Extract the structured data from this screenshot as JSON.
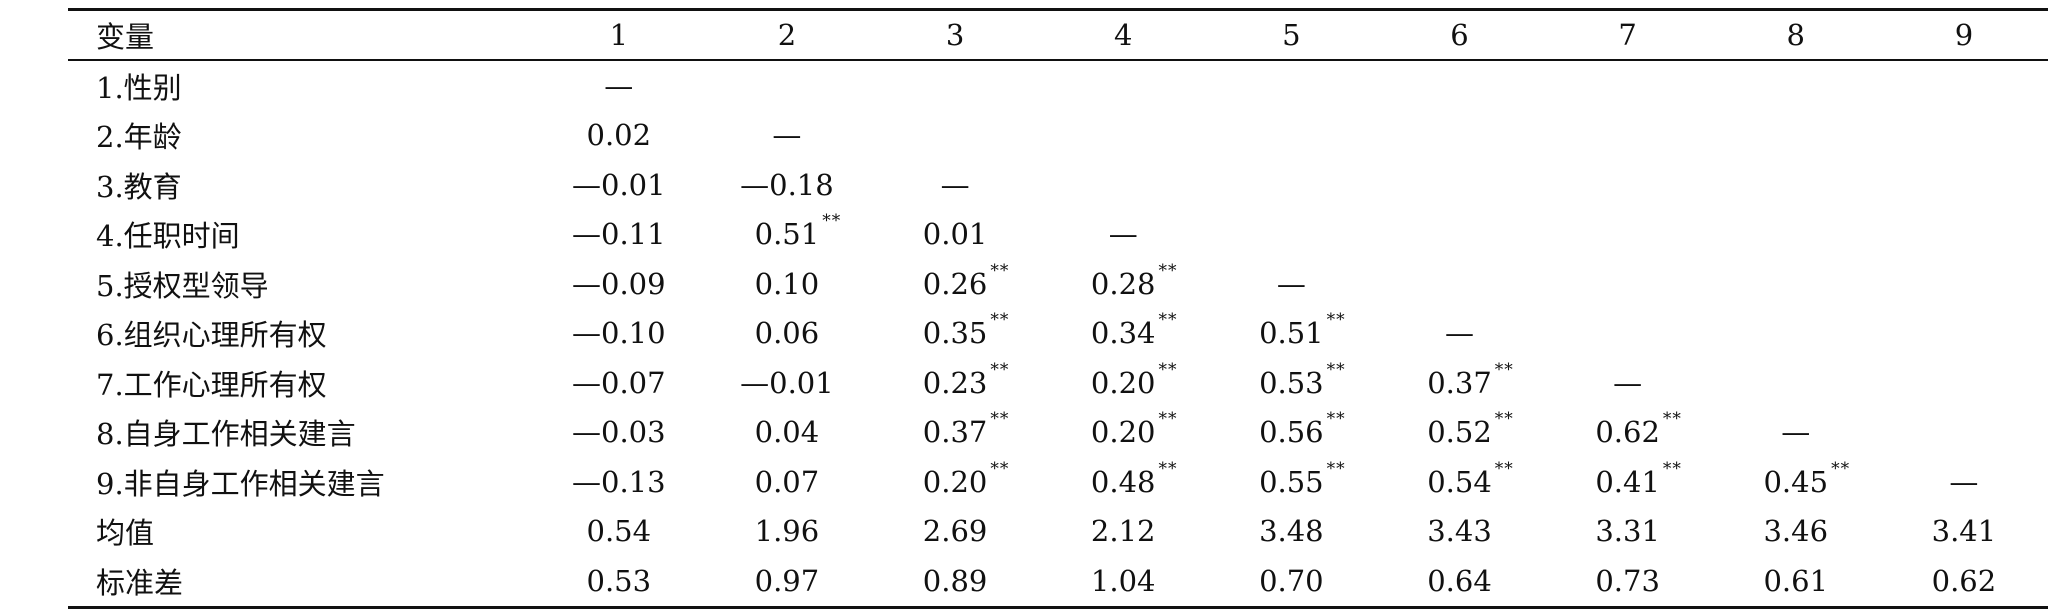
{
  "table": {
    "header": {
      "variable_label": "变量",
      "columns": [
        "1",
        "2",
        "3",
        "4",
        "5",
        "6",
        "7",
        "8",
        "9"
      ]
    },
    "rows": [
      {
        "label": "1.性别",
        "cells": [
          {
            "v": "—",
            "s": ""
          },
          {
            "v": "",
            "s": ""
          },
          {
            "v": "",
            "s": ""
          },
          {
            "v": "",
            "s": ""
          },
          {
            "v": "",
            "s": ""
          },
          {
            "v": "",
            "s": ""
          },
          {
            "v": "",
            "s": ""
          },
          {
            "v": "",
            "s": ""
          },
          {
            "v": "",
            "s": ""
          }
        ]
      },
      {
        "label": "2.年龄",
        "cells": [
          {
            "v": "0.02",
            "s": ""
          },
          {
            "v": "—",
            "s": ""
          },
          {
            "v": "",
            "s": ""
          },
          {
            "v": "",
            "s": ""
          },
          {
            "v": "",
            "s": ""
          },
          {
            "v": "",
            "s": ""
          },
          {
            "v": "",
            "s": ""
          },
          {
            "v": "",
            "s": ""
          },
          {
            "v": "",
            "s": ""
          }
        ]
      },
      {
        "label": "3.教育",
        "cells": [
          {
            "v": "—0.01",
            "s": ""
          },
          {
            "v": "—0.18",
            "s": ""
          },
          {
            "v": "—",
            "s": ""
          },
          {
            "v": "",
            "s": ""
          },
          {
            "v": "",
            "s": ""
          },
          {
            "v": "",
            "s": ""
          },
          {
            "v": "",
            "s": ""
          },
          {
            "v": "",
            "s": ""
          },
          {
            "v": "",
            "s": ""
          }
        ]
      },
      {
        "label": "4.任职时间",
        "cells": [
          {
            "v": "—0.11",
            "s": ""
          },
          {
            "v": "0.51",
            "s": "**"
          },
          {
            "v": "0.01",
            "s": ""
          },
          {
            "v": "—",
            "s": ""
          },
          {
            "v": "",
            "s": ""
          },
          {
            "v": "",
            "s": ""
          },
          {
            "v": "",
            "s": ""
          },
          {
            "v": "",
            "s": ""
          },
          {
            "v": "",
            "s": ""
          }
        ]
      },
      {
        "label": "5.授权型领导",
        "cells": [
          {
            "v": "—0.09",
            "s": ""
          },
          {
            "v": "0.10",
            "s": ""
          },
          {
            "v": "0.26",
            "s": "**"
          },
          {
            "v": "0.28",
            "s": "**"
          },
          {
            "v": "—",
            "s": ""
          },
          {
            "v": "",
            "s": ""
          },
          {
            "v": "",
            "s": ""
          },
          {
            "v": "",
            "s": ""
          },
          {
            "v": "",
            "s": ""
          }
        ]
      },
      {
        "label": "6.组织心理所有权",
        "cells": [
          {
            "v": "—0.10",
            "s": ""
          },
          {
            "v": "0.06",
            "s": ""
          },
          {
            "v": "0.35",
            "s": "**"
          },
          {
            "v": "0.34",
            "s": "**"
          },
          {
            "v": "0.51",
            "s": "**"
          },
          {
            "v": "—",
            "s": ""
          },
          {
            "v": "",
            "s": ""
          },
          {
            "v": "",
            "s": ""
          },
          {
            "v": "",
            "s": ""
          }
        ]
      },
      {
        "label": "7.工作心理所有权",
        "cells": [
          {
            "v": "—0.07",
            "s": ""
          },
          {
            "v": "—0.01",
            "s": ""
          },
          {
            "v": "0.23",
            "s": "**"
          },
          {
            "v": "0.20",
            "s": "**"
          },
          {
            "v": "0.53",
            "s": "**"
          },
          {
            "v": "0.37",
            "s": "**"
          },
          {
            "v": "—",
            "s": ""
          },
          {
            "v": "",
            "s": ""
          },
          {
            "v": "",
            "s": ""
          }
        ]
      },
      {
        "label": "8.自身工作相关建言",
        "cells": [
          {
            "v": "—0.03",
            "s": ""
          },
          {
            "v": "0.04",
            "s": ""
          },
          {
            "v": "0.37",
            "s": "**"
          },
          {
            "v": "0.20",
            "s": "**"
          },
          {
            "v": "0.56",
            "s": "**"
          },
          {
            "v": "0.52",
            "s": "**"
          },
          {
            "v": "0.62",
            "s": "**"
          },
          {
            "v": "—",
            "s": ""
          },
          {
            "v": "",
            "s": ""
          }
        ]
      },
      {
        "label": "9.非自身工作相关建言",
        "cells": [
          {
            "v": "—0.13",
            "s": ""
          },
          {
            "v": "0.07",
            "s": ""
          },
          {
            "v": "0.20",
            "s": "**"
          },
          {
            "v": "0.48",
            "s": "**"
          },
          {
            "v": "0.55",
            "s": "**"
          },
          {
            "v": "0.54",
            "s": "**"
          },
          {
            "v": "0.41",
            "s": "**"
          },
          {
            "v": "0.45",
            "s": "**"
          },
          {
            "v": "—",
            "s": ""
          }
        ]
      },
      {
        "label": "均值",
        "cells": [
          {
            "v": "0.54",
            "s": ""
          },
          {
            "v": "1.96",
            "s": ""
          },
          {
            "v": "2.69",
            "s": ""
          },
          {
            "v": "2.12",
            "s": ""
          },
          {
            "v": "3.48",
            "s": ""
          },
          {
            "v": "3.43",
            "s": ""
          },
          {
            "v": "3.31",
            "s": ""
          },
          {
            "v": "3.46",
            "s": ""
          },
          {
            "v": "3.41",
            "s": ""
          }
        ]
      },
      {
        "label": "标准差",
        "cells": [
          {
            "v": "0.53",
            "s": ""
          },
          {
            "v": "0.97",
            "s": ""
          },
          {
            "v": "0.89",
            "s": ""
          },
          {
            "v": "1.04",
            "s": ""
          },
          {
            "v": "0.70",
            "s": ""
          },
          {
            "v": "0.64",
            "s": ""
          },
          {
            "v": "0.73",
            "s": ""
          },
          {
            "v": "0.61",
            "s": ""
          },
          {
            "v": "0.62",
            "s": ""
          }
        ]
      }
    ]
  }
}
